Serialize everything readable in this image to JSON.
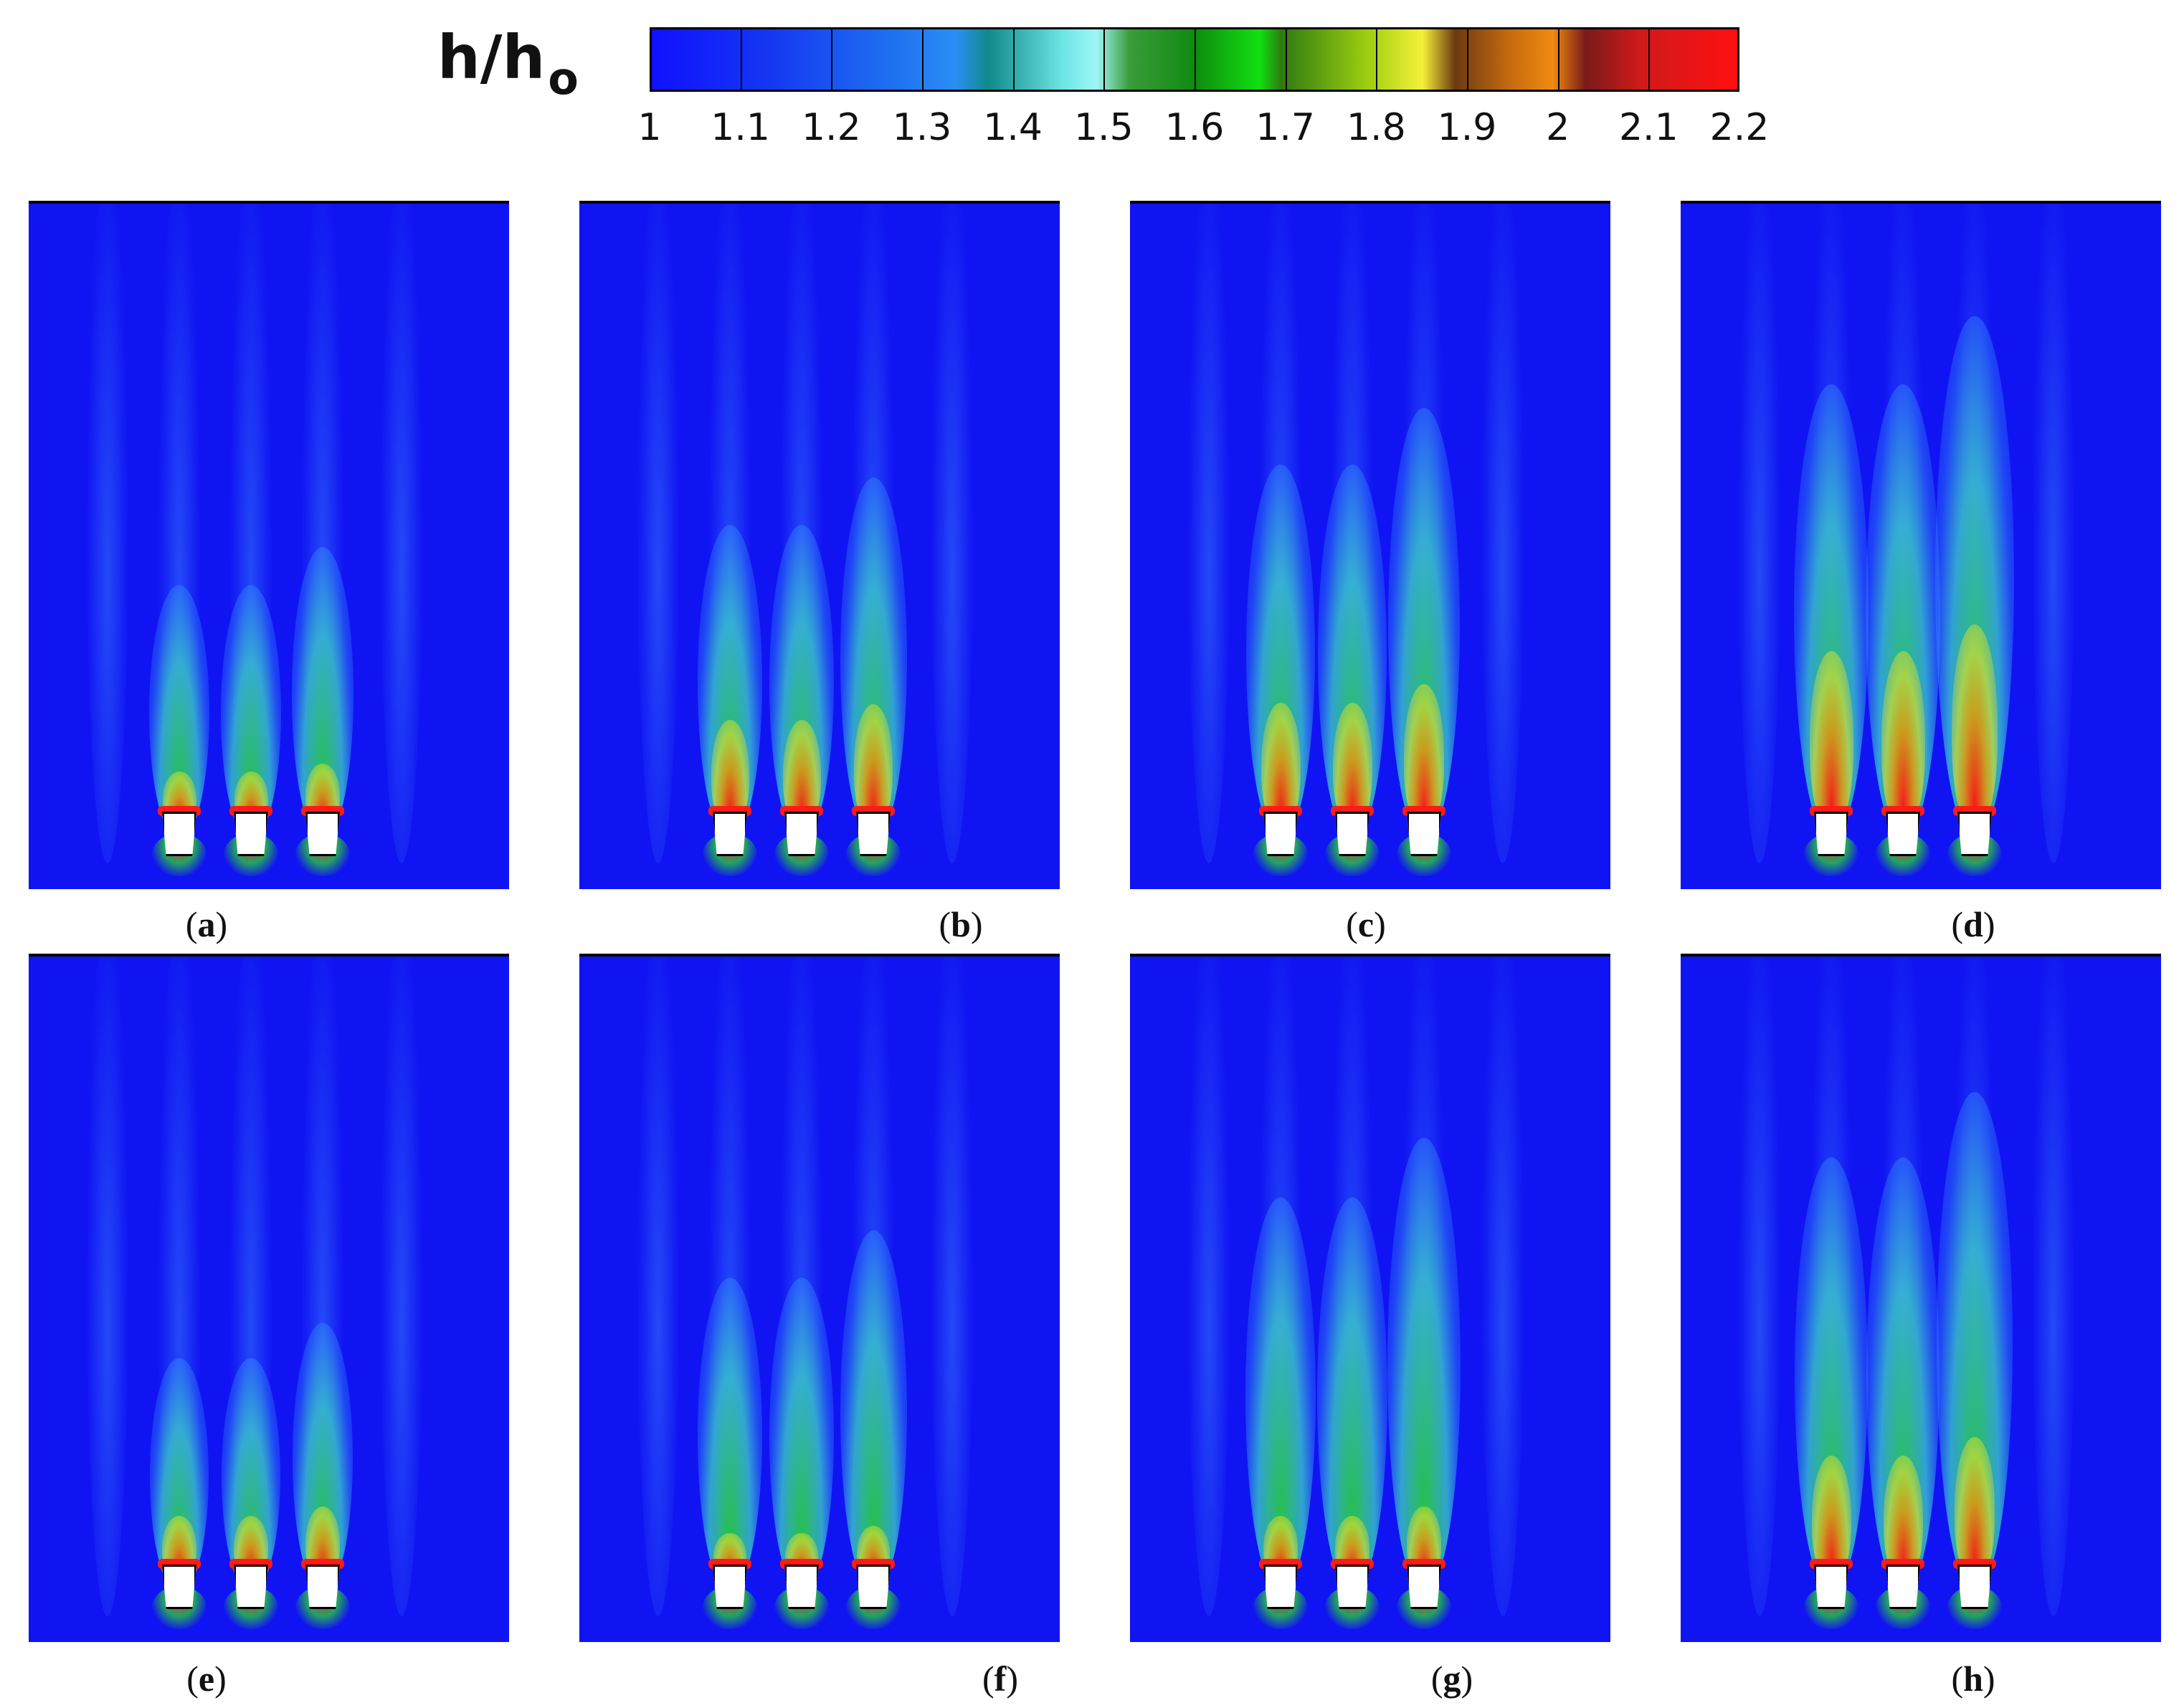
{
  "colorbar": {
    "title": "h/h",
    "title_subscript": "o",
    "min": 1,
    "max": 2.2,
    "ticks": [
      "1",
      "1.1",
      "1.2",
      "1.3",
      "1.4",
      "1.5",
      "1.6",
      "1.7",
      "1.8",
      "1.9",
      "2",
      "2.1",
      "2.2"
    ]
  },
  "panels": [
    {
      "label": "a",
      "plume_scale": 0.35,
      "hot_scale": 0.15
    },
    {
      "label": "b",
      "plume_scale": 0.5,
      "hot_scale": 0.45
    },
    {
      "label": "c",
      "plume_scale": 0.65,
      "hot_scale": 0.55
    },
    {
      "label": "d",
      "plume_scale": 0.85,
      "hot_scale": 0.85
    },
    {
      "label": "e",
      "plume_scale": 0.3,
      "hot_scale": 0.2
    },
    {
      "label": "f",
      "plume_scale": 0.5,
      "hot_scale": 0.1
    },
    {
      "label": "g",
      "plume_scale": 0.7,
      "hot_scale": 0.2
    },
    {
      "label": "h",
      "plume_scale": 0.8,
      "hot_scale": 0.55
    }
  ],
  "chart_data": {
    "type": "heatmap",
    "title": "",
    "value_label": "h/ho",
    "color_range": [
      1.0,
      2.2
    ],
    "color_stops": [
      {
        "value": 1.0,
        "color": "#1010ff"
      },
      {
        "value": 1.3,
        "color": "#2a8ef5"
      },
      {
        "value": 1.45,
        "color": "#6fe6e6"
      },
      {
        "value": 1.6,
        "color": "#10c010"
      },
      {
        "value": 1.8,
        "color": "#f6f03a"
      },
      {
        "value": 2.0,
        "color": "#c66a10"
      },
      {
        "value": 2.2,
        "color": "#ff1010"
      }
    ],
    "subplots": [
      "a",
      "b",
      "c",
      "d",
      "e",
      "f",
      "g",
      "h"
    ],
    "elements_per_subplot": 3
  }
}
